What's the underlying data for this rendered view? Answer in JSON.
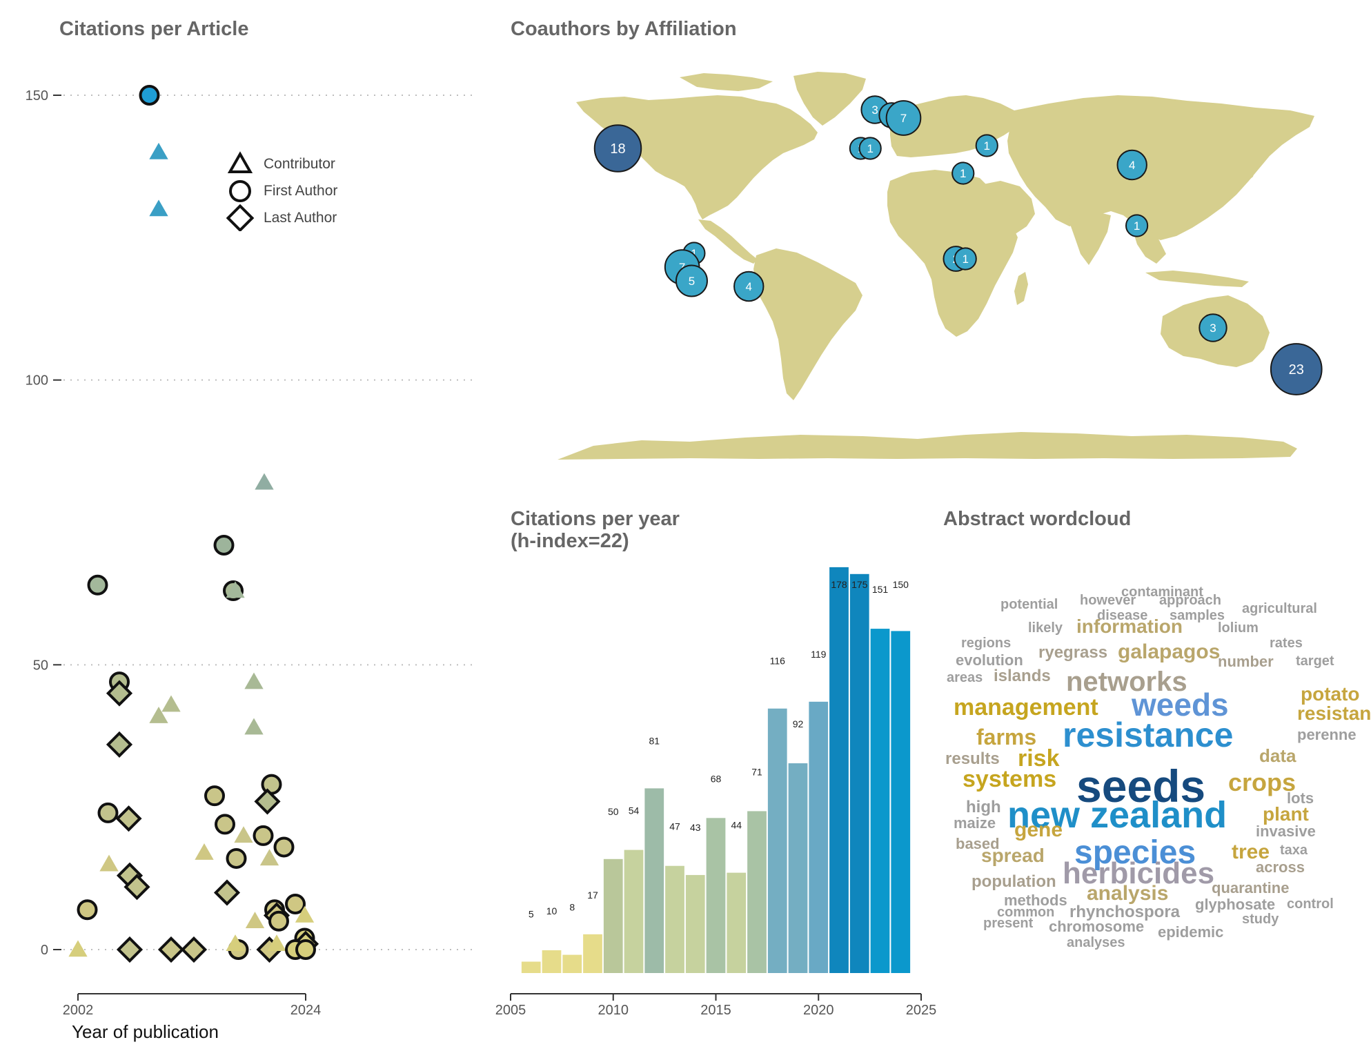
{
  "palette": {
    "title": "#666666",
    "axis": "#333333",
    "land": "#d6cf8e",
    "bubble_small": "#3aa6c8",
    "bubble_large": "#3a6797",
    "bubble_stroke": "#1a1a1a"
  },
  "chart_data": [
    {
      "type": "scatter",
      "title": "Citations per Article",
      "xlabel": "Year of publication",
      "ylabel": "",
      "xlim": [
        2002,
        2024
      ],
      "ylim": [
        0,
        150
      ],
      "x_ticks": [
        "2002",
        "2024"
      ],
      "y_ticks": [
        "0",
        "50",
        "100",
        "150"
      ],
      "grid": "horizontal dotted",
      "legend_position": "top-left",
      "legend": [
        {
          "label": "Contributor",
          "shape": "triangle"
        },
        {
          "label": "First Author",
          "shape": "circle"
        },
        {
          "label": "Last Author",
          "shape": "diamond"
        }
      ],
      "points": [
        {
          "x": 2008.9,
          "y": 150,
          "role": "First Author",
          "color": "#1f9ed6"
        },
        {
          "x": 2009.8,
          "y": 140,
          "role": "Contributor",
          "color": "#3a9fc5"
        },
        {
          "x": 2009.8,
          "y": 130,
          "role": "Contributor",
          "color": "#3a9fc5"
        },
        {
          "x": 2020.0,
          "y": 82,
          "role": "Contributor",
          "color": "#90ada2"
        },
        {
          "x": 2016.1,
          "y": 71,
          "role": "First Author",
          "color": "#9db49b"
        },
        {
          "x": 2003.9,
          "y": 64,
          "role": "First Author",
          "color": "#a3b89b"
        },
        {
          "x": 2017.0,
          "y": 63,
          "role": "First Author",
          "color": "#a8b995"
        },
        {
          "x": 2017.2,
          "y": 63,
          "role": "Contributor",
          "color": "#a3b89b"
        },
        {
          "x": 2006.0,
          "y": 47,
          "role": "First Author",
          "color": "#b4bd8f"
        },
        {
          "x": 2006.0,
          "y": 45,
          "role": "Last Author",
          "color": "#b4bd8f"
        },
        {
          "x": 2019.0,
          "y": 47,
          "role": "Contributor",
          "color": "#a8b995"
        },
        {
          "x": 2011.0,
          "y": 43,
          "role": "Contributor",
          "color": "#b4bd8f"
        },
        {
          "x": 2009.8,
          "y": 41,
          "role": "Contributor",
          "color": "#b4bd8f"
        },
        {
          "x": 2019.0,
          "y": 39,
          "role": "Contributor",
          "color": "#a8b995"
        },
        {
          "x": 2006.0,
          "y": 36,
          "role": "Last Author",
          "color": "#b4bd8f"
        },
        {
          "x": 2020.7,
          "y": 29,
          "role": "First Author",
          "color": "#c2c38d"
        },
        {
          "x": 2020.3,
          "y": 26,
          "role": "Last Author",
          "color": "#b4bd8f"
        },
        {
          "x": 2015.2,
          "y": 27,
          "role": "First Author",
          "color": "#c9c589"
        },
        {
          "x": 2004.9,
          "y": 24,
          "role": "First Author",
          "color": "#c2c38d"
        },
        {
          "x": 2006.9,
          "y": 23,
          "role": "Last Author",
          "color": "#c2c38d"
        },
        {
          "x": 2016.2,
          "y": 22,
          "role": "First Author",
          "color": "#c9c589"
        },
        {
          "x": 2019.9,
          "y": 20,
          "role": "First Author",
          "color": "#c9c589"
        },
        {
          "x": 2018.0,
          "y": 20,
          "role": "Contributor",
          "color": "#c9c589"
        },
        {
          "x": 2021.9,
          "y": 18,
          "role": "First Author",
          "color": "#c9c589"
        },
        {
          "x": 2014.2,
          "y": 17,
          "role": "Contributor",
          "color": "#cfc783"
        },
        {
          "x": 2020.5,
          "y": 16,
          "role": "Contributor",
          "color": "#c9c589"
        },
        {
          "x": 2017.3,
          "y": 16,
          "role": "First Author",
          "color": "#c9c589"
        },
        {
          "x": 2005.0,
          "y": 15,
          "role": "Contributor",
          "color": "#cfc783"
        },
        {
          "x": 2007.0,
          "y": 13,
          "role": "Last Author",
          "color": "#c2c38d"
        },
        {
          "x": 2007.7,
          "y": 11,
          "role": "Last Author",
          "color": "#c2c38d"
        },
        {
          "x": 2016.4,
          "y": 10,
          "role": "Last Author",
          "color": "#c2c38d"
        },
        {
          "x": 2023.0,
          "y": 8,
          "role": "First Author",
          "color": "#cfc783"
        },
        {
          "x": 2021.0,
          "y": 7,
          "role": "First Author",
          "color": "#cfc783"
        },
        {
          "x": 2002.9,
          "y": 7,
          "role": "First Author",
          "color": "#cfc783"
        },
        {
          "x": 2021.2,
          "y": 6,
          "role": "Last Author",
          "color": "#cfc783"
        },
        {
          "x": 2021.4,
          "y": 5,
          "role": "First Author",
          "color": "#cfc783"
        },
        {
          "x": 2019.1,
          "y": 5,
          "role": "Contributor",
          "color": "#cfc783"
        },
        {
          "x": 2023.9,
          "y": 6,
          "role": "Contributor",
          "color": "#d6ce7c"
        },
        {
          "x": 2023.9,
          "y": 2,
          "role": "First Author",
          "color": "#d6ce7c"
        },
        {
          "x": 2024.0,
          "y": 1,
          "role": "Last Author",
          "color": "#d6ce7c"
        },
        {
          "x": 2002.0,
          "y": 0,
          "role": "Contributor",
          "color": "#d6ce7c"
        },
        {
          "x": 2007.0,
          "y": 0,
          "role": "Last Author",
          "color": "#c2c38d"
        },
        {
          "x": 2011.0,
          "y": 0,
          "role": "Last Author",
          "color": "#c9c589"
        },
        {
          "x": 2013.2,
          "y": 0,
          "role": "Last Author",
          "color": "#c9c589"
        },
        {
          "x": 2017.5,
          "y": 0,
          "role": "First Author",
          "color": "#cfc783"
        },
        {
          "x": 2017.2,
          "y": 1,
          "role": "Contributor",
          "color": "#d6ce7c"
        },
        {
          "x": 2020.5,
          "y": 0,
          "role": "Last Author",
          "color": "#cfc783"
        },
        {
          "x": 2021.2,
          "y": 1,
          "role": "Contributor",
          "color": "#d6ce7c"
        },
        {
          "x": 2023.0,
          "y": 0,
          "role": "First Author",
          "color": "#d6ce7c"
        },
        {
          "x": 2024.0,
          "y": 0,
          "role": "First Author",
          "color": "#d6ce7c"
        }
      ]
    },
    {
      "type": "bubble-map",
      "title": "Coauthors by Affiliation",
      "bubbles": [
        {
          "label": "18",
          "lon": -110,
          "lat": 40,
          "value": 18
        },
        {
          "label": "23",
          "lon": 175,
          "lat": -40,
          "value": 23
        },
        {
          "label": "3",
          "lon": -2,
          "lat": 54,
          "value": 3
        },
        {
          "label": "2",
          "lon": 5,
          "lat": 52,
          "value": 2
        },
        {
          "label": "7",
          "lon": 10,
          "lat": 51,
          "value": 7
        },
        {
          "label": "1",
          "lon": -8,
          "lat": 40,
          "value": 1
        },
        {
          "label": "1",
          "lon": -4,
          "lat": 40,
          "value": 1
        },
        {
          "label": "1",
          "lon": 35,
          "lat": 31,
          "value": 1
        },
        {
          "label": "1",
          "lon": 45,
          "lat": 41,
          "value": 1
        },
        {
          "label": "4",
          "lon": 106,
          "lat": 34,
          "value": 4
        },
        {
          "label": "1",
          "lon": 108,
          "lat": 12,
          "value": 1
        },
        {
          "label": "1",
          "lon": -78,
          "lat": 2,
          "value": 1
        },
        {
          "label": "7",
          "lon": -83,
          "lat": -3,
          "value": 7
        },
        {
          "label": "5",
          "lon": -79,
          "lat": -8,
          "value": 5
        },
        {
          "label": "4",
          "lon": -55,
          "lat": -10,
          "value": 4
        },
        {
          "label": "2",
          "lon": 32,
          "lat": 0,
          "value": 2
        },
        {
          "label": "1",
          "lon": 36,
          "lat": 0,
          "value": 1
        },
        {
          "label": "3",
          "lon": 140,
          "lat": -25,
          "value": 3
        }
      ]
    },
    {
      "type": "bar",
      "title": "Citations per year",
      "subtitle": "(h-index=22)",
      "xlim": [
        2005,
        2025
      ],
      "x_ticks": [
        "2005",
        "2010",
        "2015",
        "2020",
        "2025"
      ],
      "categories": [
        2006,
        2007,
        2008,
        2009,
        2010,
        2011,
        2012,
        2013,
        2014,
        2015,
        2016,
        2017,
        2018,
        2019,
        2020,
        2021,
        2022,
        2023,
        2024
      ],
      "values": [
        5,
        10,
        8,
        17,
        50,
        54,
        81,
        47,
        43,
        68,
        44,
        71,
        116,
        92,
        119,
        178,
        175,
        151,
        150
      ],
      "colors": [
        "#e6dc8a",
        "#e6dc8a",
        "#e6dc8a",
        "#e6dc8a",
        "#b9c79a",
        "#c6d29e",
        "#9dbba8",
        "#c6d29e",
        "#c6d29e",
        "#a9c3a5",
        "#c6d29e",
        "#a9c3a5",
        "#74aec2",
        "#74aec2",
        "#69a9c5",
        "#0f86bd",
        "#0f86bd",
        "#0b98cc",
        "#0b98cc"
      ]
    }
  ],
  "wordcloud": {
    "title": "Abstract wordcloud",
    "words": [
      {
        "text": "contaminant",
        "size": 20,
        "color": "#9e9e9e"
      },
      {
        "text": "potential",
        "size": 20,
        "color": "#9e9e9e"
      },
      {
        "text": "however",
        "size": 20,
        "color": "#9e9e9e"
      },
      {
        "text": "approach",
        "size": 20,
        "color": "#9e9e9e"
      },
      {
        "text": "agricultural",
        "size": 20,
        "color": "#9e9e9e"
      },
      {
        "text": "disease",
        "size": 20,
        "color": "#9e9e9e"
      },
      {
        "text": "samples",
        "size": 20,
        "color": "#9e9e9e"
      },
      {
        "text": "likely",
        "size": 20,
        "color": "#9e9e9e"
      },
      {
        "text": "information",
        "size": 28,
        "color": "#b9a66b"
      },
      {
        "text": "lolium",
        "size": 20,
        "color": "#9e9e9e"
      },
      {
        "text": "regions",
        "size": 20,
        "color": "#9e9e9e"
      },
      {
        "text": "rates",
        "size": 20,
        "color": "#9e9e9e"
      },
      {
        "text": "ryegrass",
        "size": 24,
        "color": "#a89f8e"
      },
      {
        "text": "galapagos",
        "size": 30,
        "color": "#b9a66b"
      },
      {
        "text": "evolution",
        "size": 22,
        "color": "#9e9e9e"
      },
      {
        "text": "number",
        "size": 22,
        "color": "#a89f8e"
      },
      {
        "text": "target",
        "size": 20,
        "color": "#9e9e9e"
      },
      {
        "text": "areas",
        "size": 20,
        "color": "#9e9e9e"
      },
      {
        "text": "islands",
        "size": 24,
        "color": "#a89f8e"
      },
      {
        "text": "networks",
        "size": 40,
        "color": "#a89f8e"
      },
      {
        "text": "potato",
        "size": 28,
        "color": "#c6a53e"
      },
      {
        "text": "management",
        "size": 34,
        "color": "#c6a51f"
      },
      {
        "text": "weeds",
        "size": 46,
        "color": "#5f94d6"
      },
      {
        "text": "resistant",
        "size": 28,
        "color": "#c6a53e"
      },
      {
        "text": "farms",
        "size": 32,
        "color": "#c6a53e"
      },
      {
        "text": "resistance",
        "size": 50,
        "color": "#2d8fcf"
      },
      {
        "text": "perenne",
        "size": 22,
        "color": "#9e9e9e"
      },
      {
        "text": "results",
        "size": 24,
        "color": "#a89f8e"
      },
      {
        "text": "risk",
        "size": 34,
        "color": "#c6a51f"
      },
      {
        "text": "data",
        "size": 26,
        "color": "#b9a66b"
      },
      {
        "text": "seeds",
        "size": 66,
        "color": "#164a7e"
      },
      {
        "text": "systems",
        "size": 34,
        "color": "#c6a51f"
      },
      {
        "text": "crops",
        "size": 36,
        "color": "#c6a53e"
      },
      {
        "text": "lots",
        "size": 22,
        "color": "#9e9e9e"
      },
      {
        "text": "high",
        "size": 24,
        "color": "#9e9e9e"
      },
      {
        "text": "new zealand",
        "size": 54,
        "color": "#1f8fc8"
      },
      {
        "text": "plant",
        "size": 28,
        "color": "#c6a53e"
      },
      {
        "text": "maize",
        "size": 22,
        "color": "#9e9e9e"
      },
      {
        "text": "gene",
        "size": 30,
        "color": "#c6a53e"
      },
      {
        "text": "invasive",
        "size": 22,
        "color": "#9e9e9e"
      },
      {
        "text": "based",
        "size": 22,
        "color": "#a89f8e"
      },
      {
        "text": "species",
        "size": 48,
        "color": "#4b8fd6"
      },
      {
        "text": "tree",
        "size": 30,
        "color": "#c6a53e"
      },
      {
        "text": "taxa",
        "size": 20,
        "color": "#9e9e9e"
      },
      {
        "text": "spread",
        "size": 28,
        "color": "#b9a66b"
      },
      {
        "text": "across",
        "size": 22,
        "color": "#a89f8e"
      },
      {
        "text": "herbicides",
        "size": 44,
        "color": "#a09aa8"
      },
      {
        "text": "population",
        "size": 24,
        "color": "#a89f8e"
      },
      {
        "text": "quarantine",
        "size": 22,
        "color": "#a89f8e"
      },
      {
        "text": "analysis",
        "size": 30,
        "color": "#b9a66b"
      },
      {
        "text": "methods",
        "size": 22,
        "color": "#9e9e9e"
      },
      {
        "text": "glyphosate",
        "size": 22,
        "color": "#9e9e9e"
      },
      {
        "text": "control",
        "size": 20,
        "color": "#9e9e9e"
      },
      {
        "text": "common",
        "size": 20,
        "color": "#9e9e9e"
      },
      {
        "text": "rhynchospora",
        "size": 24,
        "color": "#9e9e9e"
      },
      {
        "text": "present",
        "size": 20,
        "color": "#9e9e9e"
      },
      {
        "text": "study",
        "size": 20,
        "color": "#9e9e9e"
      },
      {
        "text": "chromosome",
        "size": 22,
        "color": "#9e9e9e"
      },
      {
        "text": "epidemic",
        "size": 22,
        "color": "#9e9e9e"
      },
      {
        "text": "analyses",
        "size": 20,
        "color": "#9e9e9e"
      }
    ]
  }
}
